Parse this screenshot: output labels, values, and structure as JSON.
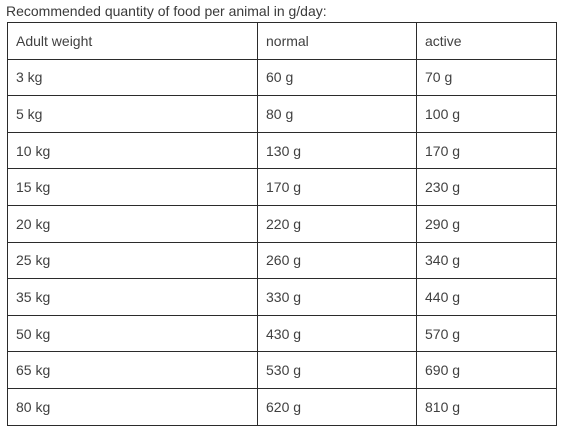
{
  "caption": "Recommended quantity of food per animal in g/day:",
  "table": {
    "header": [
      "Adult weight",
      "normal",
      "active"
    ],
    "rows": [
      [
        "3 kg",
        "60 g",
        "70 g"
      ],
      [
        "5 kg",
        "80 g",
        "100 g"
      ],
      [
        "10 kg",
        "130 g",
        "170 g"
      ],
      [
        "15 kg",
        "170 g",
        "230 g"
      ],
      [
        "20 kg",
        "220 g",
        "290 g"
      ],
      [
        "25 kg",
        "260 g",
        "340 g"
      ],
      [
        "35 kg",
        "330 g",
        "440 g"
      ],
      [
        "50 kg",
        "430 g",
        "570 g"
      ],
      [
        "65 kg",
        "530 g",
        "690 g"
      ],
      [
        "80 kg",
        "620 g",
        "810 g"
      ]
    ]
  }
}
